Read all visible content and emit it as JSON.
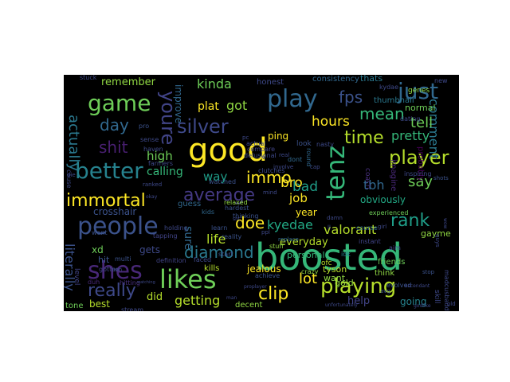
{
  "wordcloud": {
    "background": "#000000",
    "colormap": "viridis",
    "words": [
      {
        "text": "boosted",
        "color": "#35b779"
      },
      {
        "text": "good",
        "color": "#fde725"
      },
      {
        "text": "people",
        "color": "#3b528b"
      },
      {
        "text": "likes",
        "color": "#6ece58"
      },
      {
        "text": "shes",
        "color": "#482878"
      },
      {
        "text": "play",
        "color": "#31688e"
      },
      {
        "text": "better",
        "color": "#26828e"
      },
      {
        "text": "playing",
        "color": "#b5de2b"
      },
      {
        "text": "game",
        "color": "#6ece58"
      },
      {
        "text": "tenz",
        "color": "#35b779"
      },
      {
        "text": "average",
        "color": "#443983"
      },
      {
        "text": "immortal",
        "color": "#fde725"
      },
      {
        "text": "really",
        "color": "#3e4989"
      },
      {
        "text": "player",
        "color": "#b5de2b"
      },
      {
        "text": "rank",
        "color": "#1f9e89"
      },
      {
        "text": "clip",
        "color": "#fde725"
      },
      {
        "text": "just",
        "color": "#31688e"
      },
      {
        "text": "time",
        "color": "#b5de2b"
      },
      {
        "text": "silver",
        "color": "#3e4989"
      },
      {
        "text": "youre",
        "color": "#414487"
      },
      {
        "text": "shit",
        "color": "#481f70"
      },
      {
        "text": "diamond",
        "color": "#2a788e"
      },
      {
        "text": "getting",
        "color": "#b5de2b"
      },
      {
        "text": "immo",
        "color": "#fde725"
      },
      {
        "text": "comment",
        "color": "#2a788e"
      },
      {
        "text": "fps",
        "color": "#3b528b"
      },
      {
        "text": "mean",
        "color": "#35b779"
      },
      {
        "text": "hours",
        "color": "#fde725"
      },
      {
        "text": "kinda",
        "color": "#6ece58"
      },
      {
        "text": "doe",
        "color": "#fde725"
      },
      {
        "text": "kyedae",
        "color": "#22a884"
      },
      {
        "text": "bad",
        "color": "#1f9e89"
      },
      {
        "text": "day",
        "color": "#31688e"
      },
      {
        "text": "pretty",
        "color": "#35b779"
      },
      {
        "text": "tell",
        "color": "#6ece58"
      },
      {
        "text": "say",
        "color": "#6ece58"
      },
      {
        "text": "bro",
        "color": "#fde725"
      },
      {
        "text": "lot",
        "color": "#fde725"
      },
      {
        "text": "life",
        "color": "#b5de2b"
      },
      {
        "text": "got",
        "color": "#90d743"
      },
      {
        "text": "plat",
        "color": "#fde725"
      },
      {
        "text": "actually",
        "color": "#2a788e"
      },
      {
        "text": "literally",
        "color": "#3b528b"
      },
      {
        "text": "valorant",
        "color": "#b5de2b"
      },
      {
        "text": "tbh",
        "color": "#31688e"
      },
      {
        "text": "obviously",
        "color": "#22a884"
      },
      {
        "text": "high",
        "color": "#6ece58"
      },
      {
        "text": "calling",
        "color": "#35b779"
      },
      {
        "text": "sure",
        "color": "#31688e"
      },
      {
        "text": "way",
        "color": "#1f9e89"
      },
      {
        "text": "job",
        "color": "#fde725"
      },
      {
        "text": "year",
        "color": "#fde725"
      },
      {
        "text": "ping",
        "color": "#fde725"
      },
      {
        "text": "everyday",
        "color": "#b5de2b"
      },
      {
        "text": "personal",
        "color": "#35b779"
      },
      {
        "text": "jealous",
        "color": "#fde725"
      },
      {
        "text": "gets",
        "color": "#3e4989"
      },
      {
        "text": "did",
        "color": "#b5de2b"
      },
      {
        "text": "help",
        "color": "#414487"
      },
      {
        "text": "going",
        "color": "#26828e"
      },
      {
        "text": "remember",
        "color": "#90d743"
      },
      {
        "text": "improve",
        "color": "#31688e"
      },
      {
        "text": "normal",
        "color": "#6ece58"
      },
      {
        "text": "thumbnail",
        "color": "#2a788e"
      },
      {
        "text": "consistency",
        "color": "#31688e"
      },
      {
        "text": "thats",
        "color": "#2a788e"
      },
      {
        "text": "honest",
        "color": "#3e4989"
      },
      {
        "text": "crosshair",
        "color": "#3b528b"
      },
      {
        "text": "xd",
        "color": "#6ece58"
      },
      {
        "text": "hit",
        "color": "#3b528b"
      },
      {
        "text": "tyson",
        "color": "#b5de2b"
      },
      {
        "text": "gold",
        "color": "#90d743"
      },
      {
        "text": "tone",
        "color": "#6ece58"
      },
      {
        "text": "best",
        "color": "#b5de2b"
      },
      {
        "text": "decent",
        "color": "#90d743"
      },
      {
        "text": "want",
        "color": "#90d743"
      },
      {
        "text": "guess",
        "color": "#31688e"
      },
      {
        "text": "kills",
        "color": "#b5de2b"
      },
      {
        "text": "friends",
        "color": "#6ece58"
      },
      {
        "text": "think",
        "color": "#90d743"
      },
      {
        "text": "gayme",
        "color": "#90d743"
      },
      {
        "text": "probably",
        "color": "#440154"
      },
      {
        "text": "imagine",
        "color": "#482878"
      },
      {
        "text": "coach",
        "color": "#472f7d"
      },
      {
        "text": "nasty",
        "color": "#3e4989"
      },
      {
        "text": "look",
        "color": "#3b528b"
      },
      {
        "text": "round",
        "color": "#31688e"
      },
      {
        "text": "ofc",
        "color": "#b5de2b"
      },
      {
        "text": "course",
        "color": "#31688e"
      },
      {
        "text": "instant",
        "color": "#414487"
      },
      {
        "text": "aim",
        "color": "#414487"
      },
      {
        "text": "stuff",
        "color": "#90d743"
      },
      {
        "text": "idk",
        "color": "#26828e"
      },
      {
        "text": "crazy",
        "color": "#90d743"
      },
      {
        "text": "reality",
        "color": "#3b528b"
      },
      {
        "text": "achieve",
        "color": "#3b528b"
      },
      {
        "text": "multi",
        "color": "#3b528b"
      },
      {
        "text": "level",
        "color": "#414487"
      },
      {
        "text": "gotten",
        "color": "#414487"
      },
      {
        "text": "hitting",
        "color": "#472f7d"
      },
      {
        "text": "tapping",
        "color": "#414487"
      },
      {
        "text": "definition",
        "color": "#414487"
      },
      {
        "text": "holding",
        "color": "#3e4989"
      },
      {
        "text": "faced",
        "color": "#3e4989"
      },
      {
        "text": "learn",
        "color": "#3b528b"
      },
      {
        "text": "hardest",
        "color": "#3b528b"
      },
      {
        "text": "thinking",
        "color": "#3b528b"
      },
      {
        "text": "start",
        "color": "#3b528b"
      },
      {
        "text": "kids",
        "color": "#31688e"
      },
      {
        "text": "relaxed",
        "color": "#90d743"
      },
      {
        "text": "watched",
        "color": "#3b528b"
      },
      {
        "text": "compare",
        "color": "#414487"
      },
      {
        "text": "actual",
        "color": "#3e4989"
      },
      {
        "text": "dont",
        "color": "#31688e"
      },
      {
        "text": "sense",
        "color": "#3e4989"
      },
      {
        "text": "pro",
        "color": "#3b528b"
      },
      {
        "text": "haven",
        "color": "#3e4989"
      },
      {
        "text": "farmers",
        "color": "#3e4989"
      },
      {
        "text": "wont",
        "color": "#3b528b"
      },
      {
        "text": "duh",
        "color": "#482878"
      },
      {
        "text": "stream",
        "color": "#3e4989"
      },
      {
        "text": "genes",
        "color": "#90d743"
      },
      {
        "text": "kydae",
        "color": "#3e4989"
      },
      {
        "text": "dating",
        "color": "#3e4989"
      },
      {
        "text": "evolved",
        "color": "#3b528b"
      },
      {
        "text": "avg",
        "color": "#3b528b"
      },
      {
        "text": "stop",
        "color": "#3b528b"
      },
      {
        "text": "inspiring",
        "color": "#3e4989"
      },
      {
        "text": "experienced",
        "color": "#6ece58"
      },
      {
        "text": "shots",
        "color": "#3b528b"
      },
      {
        "text": "skill",
        "color": "#3e4989"
      },
      {
        "text": "madcusbadd",
        "color": "#3e4989"
      },
      {
        "text": "guys",
        "color": "#3e4989"
      },
      {
        "text": "new",
        "color": "#3e4989"
      },
      {
        "text": "girl",
        "color": "#3e4989"
      },
      {
        "text": "damn",
        "color": "#3e4989"
      },
      {
        "text": "replace",
        "color": "#31688e"
      },
      {
        "text": "ppl",
        "color": "#3e4989"
      },
      {
        "text": "real",
        "color": "#3e4989"
      },
      {
        "text": "cause",
        "color": "#3e4989"
      },
      {
        "text": "stuck",
        "color": "#3e4989"
      },
      {
        "text": "godlike",
        "color": "#3e4989"
      },
      {
        "text": "ascendant",
        "color": "#3e4989"
      },
      {
        "text": "old",
        "color": "#3e4989"
      },
      {
        "text": "unfortunately",
        "color": "#3e4989"
      },
      {
        "text": "proplayer",
        "color": "#3e4989"
      },
      {
        "text": "watching",
        "color": "#3e4989"
      },
      {
        "text": "delusional",
        "color": "#3e4989"
      },
      {
        "text": "clutches",
        "color": "#3e4989"
      },
      {
        "text": "involve",
        "color": "#3e4989"
      },
      {
        "text": "mind",
        "color": "#3e4989"
      },
      {
        "text": "wow",
        "color": "#3e4989"
      },
      {
        "text": "cap",
        "color": "#3e4989"
      },
      {
        "text": "ranked",
        "color": "#3e4989"
      },
      {
        "text": "okay",
        "color": "#3e4989"
      },
      {
        "text": "sht",
        "color": "#3e4989"
      },
      {
        "text": "die",
        "color": "#3e4989"
      },
      {
        "text": "non",
        "color": "#3e4989"
      },
      {
        "text": "pc",
        "color": "#3e4989"
      },
      {
        "text": "man",
        "color": "#3e4989"
      },
      {
        "text": "ll",
        "color": "#3e4989"
      },
      {
        "text": "v",
        "color": "#3e4989"
      }
    ]
  }
}
